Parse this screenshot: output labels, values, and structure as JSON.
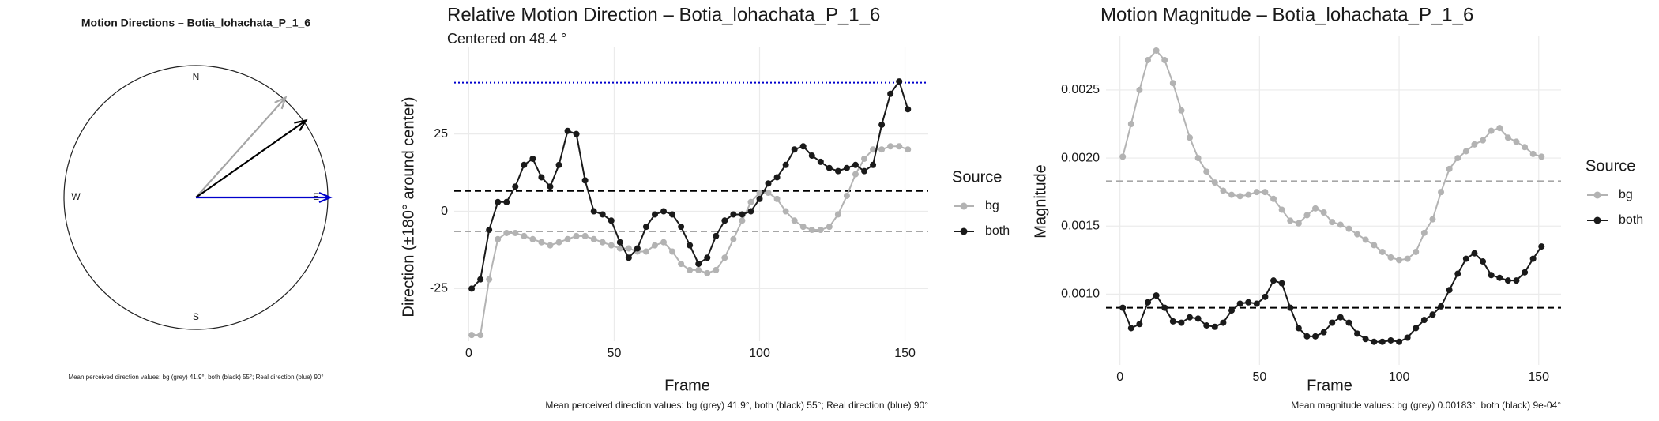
{
  "chart_data": [
    {
      "type": "compass",
      "title": "Motion Directions – Botia_lohachata_P_1_6",
      "compass_labels": [
        "N",
        "E",
        "S",
        "W"
      ],
      "arrows": [
        {
          "color": "#a6a6a6",
          "value": 41.9
        },
        {
          "color": "#000000",
          "value": 55
        },
        {
          "color": "#0000cc",
          "value": 90
        }
      ],
      "caption": "Mean perceived direction values: bg (grey) 41.9°, both (black) 55°; Real direction (blue) 90°"
    },
    {
      "type": "line",
      "title": "Relative Motion Direction – Botia_lohachata_P_1_6",
      "subtitle": "Centered on  48.4 °",
      "x_label": "Frame",
      "y_label": "Direction (±180° around center)",
      "legend_title": "Source",
      "caption": "Mean perceived direction values: bg (grey) 41.9°, both (black) 55°; Real direction (blue) 90°",
      "xlim": [
        -5,
        158
      ],
      "xticks": [
        0,
        50,
        100,
        150
      ],
      "ylim": [
        -42,
        53
      ],
      "yticks": [
        -25,
        0,
        25
      ],
      "grid": true,
      "x": [
        1,
        4,
        7,
        10,
        13,
        16,
        19,
        22,
        25,
        28,
        31,
        34,
        37,
        40,
        43,
        46,
        49,
        52,
        55,
        58,
        61,
        64,
        67,
        70,
        73,
        76,
        79,
        82,
        85,
        88,
        91,
        94,
        97,
        100,
        103,
        106,
        109,
        112,
        115,
        118,
        121,
        124,
        127,
        130,
        133,
        136,
        139,
        142,
        145,
        148,
        151
      ],
      "series": [
        {
          "name": "bg",
          "color": "#b3b3b3",
          "values": [
            -40,
            -40,
            -22,
            -9,
            -7,
            -7,
            -8,
            -9,
            -10,
            -11,
            -10,
            -9,
            -8,
            -8,
            -9,
            -10,
            -11,
            -12,
            -12,
            -13,
            -13,
            -11,
            -10,
            -13,
            -17,
            -19,
            -19,
            -20,
            -19,
            -15,
            -9,
            -3,
            3,
            6,
            6,
            4,
            0,
            -3,
            -5,
            -6,
            -6,
            -5,
            -1,
            5,
            12,
            17,
            20,
            20,
            21,
            21,
            20
          ]
        },
        {
          "name": "both",
          "color": "#1a1a1a",
          "values": [
            -25,
            -22,
            -6,
            3,
            3,
            8,
            15,
            17,
            11,
            8,
            15,
            26,
            25,
            10,
            0,
            -1,
            -3,
            -10,
            -15,
            -12,
            -5,
            -1,
            0,
            -1,
            -5,
            -11,
            -17,
            -15,
            -8,
            -3,
            -1,
            -1,
            0,
            4,
            9,
            11,
            15,
            20,
            21,
            18,
            16,
            14,
            13,
            14,
            15,
            13,
            15,
            28,
            38,
            42,
            33
          ]
        }
      ],
      "reference_lines": [
        {
          "value": 41.6,
          "color": "#0000cc",
          "style": "dotted"
        },
        {
          "value": 6.6,
          "color": "#000000",
          "style": "dashed"
        },
        {
          "value": -6.5,
          "color": "#a6a6a6",
          "style": "dashed"
        }
      ]
    },
    {
      "type": "line",
      "title": "Motion Magnitude – Botia_lohachata_P_1_6",
      "x_label": "Frame",
      "y_label": "Magnitude",
      "legend_title": "Source",
      "caption": "Mean magnitude values: bg (grey) 0.00183°, both (black) 9e-04°",
      "xlim": [
        -5,
        158
      ],
      "xticks": [
        0,
        50,
        100,
        150
      ],
      "ylim": [
        0.00048,
        0.0029
      ],
      "yticks": [
        {
          "value": 0.001,
          "label": "0.0010"
        },
        {
          "value": 0.0015,
          "label": "0.0015"
        },
        {
          "value": 0.002,
          "label": "0.0020"
        },
        {
          "value": 0.0025,
          "label": "0.0025"
        }
      ],
      "grid": true,
      "x": [
        1,
        4,
        7,
        10,
        13,
        16,
        19,
        22,
        25,
        28,
        31,
        34,
        37,
        40,
        43,
        46,
        49,
        52,
        55,
        58,
        61,
        64,
        67,
        70,
        73,
        76,
        79,
        82,
        85,
        88,
        91,
        94,
        97,
        100,
        103,
        106,
        109,
        112,
        115,
        118,
        121,
        124,
        127,
        130,
        133,
        136,
        139,
        142,
        145,
        148,
        151
      ],
      "series": [
        {
          "name": "bg",
          "color": "#b3b3b3",
          "values": [
            0.00201,
            0.00225,
            0.0025,
            0.00272,
            0.00279,
            0.00272,
            0.00255,
            0.00235,
            0.00215,
            0.002,
            0.0019,
            0.00182,
            0.00176,
            0.00173,
            0.00172,
            0.00173,
            0.00175,
            0.00175,
            0.0017,
            0.00162,
            0.00154,
            0.00152,
            0.00158,
            0.00163,
            0.0016,
            0.00153,
            0.00151,
            0.00148,
            0.00144,
            0.0014,
            0.00136,
            0.00131,
            0.00127,
            0.00125,
            0.00126,
            0.00131,
            0.00145,
            0.00155,
            0.00175,
            0.00192,
            0.002,
            0.00205,
            0.0021,
            0.00213,
            0.0022,
            0.00222,
            0.00215,
            0.00212,
            0.00208,
            0.00203,
            0.00201
          ]
        },
        {
          "name": "both",
          "color": "#1a1a1a",
          "values": [
            0.0009,
            0.00075,
            0.00078,
            0.00094,
            0.00099,
            0.0009,
            0.0008,
            0.00079,
            0.00083,
            0.00082,
            0.00077,
            0.00076,
            0.00079,
            0.00088,
            0.00093,
            0.00094,
            0.00093,
            0.00098,
            0.0011,
            0.00108,
            0.0009,
            0.00075,
            0.00069,
            0.00069,
            0.00072,
            0.00079,
            0.00083,
            0.00079,
            0.00071,
            0.00067,
            0.00065,
            0.00065,
            0.00066,
            0.00065,
            0.00068,
            0.00075,
            0.00081,
            0.00085,
            0.00091,
            0.00103,
            0.00115,
            0.00126,
            0.0013,
            0.00124,
            0.00114,
            0.00112,
            0.0011,
            0.0011,
            0.00116,
            0.00126,
            0.00135
          ]
        }
      ],
      "reference_lines": [
        {
          "value": 0.00183,
          "color": "#a6a6a6",
          "style": "dashed"
        },
        {
          "value": 0.0009,
          "color": "#000000",
          "style": "dashed"
        }
      ]
    }
  ]
}
